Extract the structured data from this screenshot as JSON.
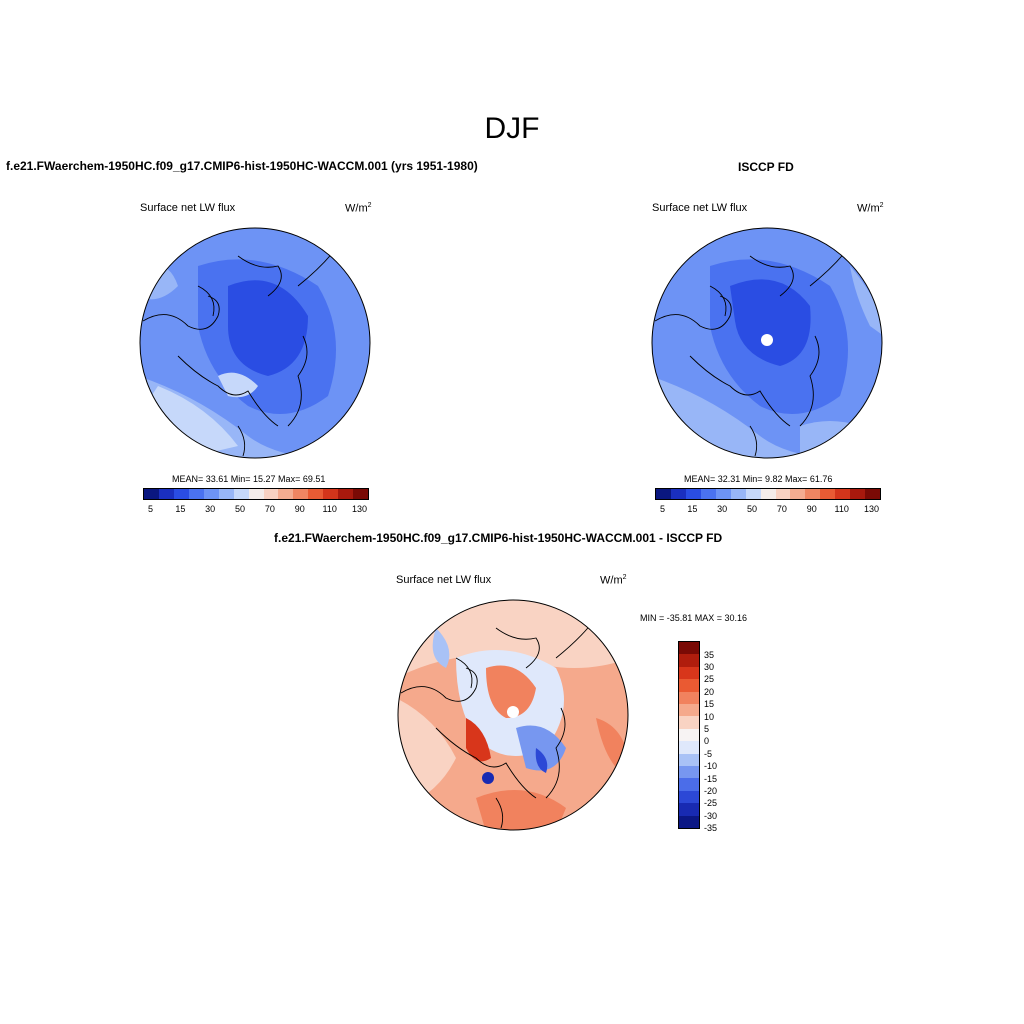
{
  "figure": {
    "season_title": "DJF"
  },
  "panels": [
    {
      "id": "model",
      "case_title": "f.e21.FWaerchem-1950HC.f09_g17.CMIP6-hist-1950HC-WACCM.001 (yrs 1951-1980)",
      "variable_label": "Surface net LW flux",
      "units_base": "W/m",
      "units_exp": "2",
      "stats_text": "MEAN=  33.61  Min=  15.27  Max=  69.51",
      "colorbar_ticks": [
        "5",
        "15",
        "30",
        "50",
        "70",
        "90",
        "110",
        "130"
      ]
    },
    {
      "id": "obs",
      "case_title": "ISCCP FD",
      "variable_label": "Surface net LW flux",
      "units_base": "W/m",
      "units_exp": "2",
      "stats_text": "MEAN=  32.31  Min=   9.82  Max=  61.76",
      "colorbar_ticks": [
        "5",
        "15",
        "30",
        "50",
        "70",
        "90",
        "110",
        "130"
      ]
    },
    {
      "id": "diff",
      "case_title": "f.e21.FWaerchem-1950HC.f09_g17.CMIP6-hist-1950HC-WACCM.001 - ISCCP FD",
      "variable_label": "Surface net LW flux",
      "units_base": "W/m",
      "units_exp": "2",
      "stats_text": "MIN = -35.81 MAX =  30.16",
      "colorbar_ticks": [
        "35",
        "30",
        "25",
        "20",
        "15",
        "10",
        "5",
        "0",
        "-5",
        "-10",
        "-15",
        "-20",
        "-25",
        "-30",
        "-35"
      ]
    }
  ],
  "colorbars": {
    "absolute_colors": [
      "#0a1780",
      "#1a2fbf",
      "#2a4de3",
      "#4a72f0",
      "#6d93f5",
      "#98b6f7",
      "#c6d8fa",
      "#f4ecea",
      "#f8d1c2",
      "#f4ac91",
      "#ef8562",
      "#e85b34",
      "#d3351b",
      "#a8190d",
      "#7a0a05"
    ],
    "diff_colors": [
      "#7a0a05",
      "#b01d0d",
      "#d8361b",
      "#ea5a32",
      "#f1825e",
      "#f5a98c",
      "#f9d3c3",
      "#f7f3f3",
      "#dfe8fb",
      "#a9c2f6",
      "#7797f0",
      "#4b6de9",
      "#2c48d6",
      "#182ab2",
      "#0b1785"
    ]
  }
}
